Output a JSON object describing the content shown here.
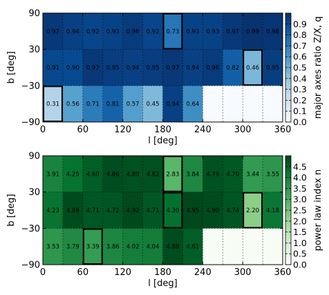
{
  "chart_data": [
    {
      "type": "heatmap",
      "xlabel": "l [deg]",
      "ylabel": "b [deg]",
      "xlim": [
        0,
        360
      ],
      "ylim": [
        -90,
        90
      ],
      "x_ticks": [
        "0",
        "60",
        "120",
        "180",
        "240",
        "300",
        "360"
      ],
      "y_ticks": [
        "90",
        "30",
        "−30",
        "−90"
      ],
      "row_b_edges": [
        [
          30,
          90
        ],
        [
          -30,
          30
        ],
        [
          -90,
          -30
        ]
      ],
      "col_width_deg": 30,
      "rows": [
        [
          0.97,
          0.94,
          0.92,
          0.93,
          0.96,
          0.92,
          0.73,
          0.93,
          0.93,
          0.97,
          0.99,
          0.98
        ],
        [
          0.91,
          0.9,
          0.97,
          0.95,
          0.94,
          0.95,
          0.97,
          0.94,
          0.96,
          0.82,
          0.46,
          0.95
        ],
        [
          0.31,
          0.56,
          0.71,
          0.81,
          0.57,
          0.45,
          0.94,
          0.64,
          null,
          null,
          null,
          null
        ]
      ],
      "labels": [
        [
          "0.97",
          "0.94",
          "0.92",
          "0.93",
          "0.96",
          "0.92",
          "0.73",
          "0.93",
          "0.93",
          "0.97",
          "0.99",
          "0.98"
        ],
        [
          "0.91",
          "0.90",
          "0.97",
          "0.95",
          "0.94",
          "0.95",
          "0.97",
          "0.94",
          "0.96",
          "0.82",
          "0.46",
          "0.95"
        ],
        [
          "0.31",
          "0.56",
          "0.71",
          "0.81",
          "0.57",
          "0.45",
          "0.94",
          "0.64",
          "",
          "",
          "",
          ""
        ]
      ],
      "highlighted": [
        [
          0,
          6
        ],
        [
          1,
          10
        ],
        [
          2,
          0
        ]
      ],
      "colorbar": {
        "label": "major axes ratio Z/X, q",
        "range": [
          0,
          1
        ],
        "ticks": [
          "0.0",
          "0.1",
          "0.2",
          "0.3",
          "0.4",
          "0.5",
          "0.6",
          "0.7",
          "0.8",
          "0.9"
        ],
        "tick_values": [
          0,
          0.1,
          0.2,
          0.3,
          0.4,
          0.5,
          0.6,
          0.7,
          0.8,
          0.9
        ],
        "colormap": [
          "#f7fbff",
          "#deebf7",
          "#c6dbef",
          "#9ecae1",
          "#6baed6",
          "#4292c6",
          "#2171b5",
          "#08519c",
          "#08306b"
        ]
      },
      "grid": true
    },
    {
      "type": "heatmap",
      "xlabel": "l [deg]",
      "ylabel": "b [deg]",
      "xlim": [
        0,
        360
      ],
      "ylim": [
        -90,
        90
      ],
      "x_ticks": [
        "0",
        "60",
        "120",
        "180",
        "240",
        "300",
        "360"
      ],
      "y_ticks": [
        "90",
        "30",
        "−30",
        "−90"
      ],
      "row_b_edges": [
        [
          30,
          90
        ],
        [
          -30,
          30
        ],
        [
          -90,
          -30
        ]
      ],
      "col_width_deg": 30,
      "rows": [
        [
          3.91,
          4.25,
          4.6,
          4.86,
          4.8,
          4.82,
          2.83,
          3.84,
          4.79,
          4.7,
          3.44,
          3.55
        ],
        [
          4.23,
          4.89,
          4.71,
          4.72,
          4.92,
          4.71,
          4.3,
          4.95,
          4.9,
          4.74,
          2.2,
          4.18
        ],
        [
          3.53,
          3.79,
          3.39,
          3.86,
          4.02,
          4.04,
          4.88,
          4.61,
          null,
          null,
          null,
          null
        ]
      ],
      "labels": [
        [
          "3.91",
          "4.25",
          "4.60",
          "4.86",
          "4.80",
          "4.82",
          "2.83",
          "3.84",
          "4.79",
          "4.70",
          "3.44",
          "3.55"
        ],
        [
          "4.23",
          "4.89",
          "4.71",
          "4.72",
          "4.92",
          "4.71",
          "4.30",
          "4.95",
          "4.90",
          "4.74",
          "2.20",
          "4.18"
        ],
        [
          "3.53",
          "3.79",
          "3.39",
          "3.86",
          "4.02",
          "4.04",
          "4.88",
          "4.61",
          "",
          "",
          "",
          ""
        ]
      ],
      "highlighted": [
        [
          0,
          6
        ],
        [
          1,
          6
        ],
        [
          1,
          10
        ],
        [
          2,
          2
        ]
      ],
      "colorbar": {
        "label": "power law index n",
        "range": [
          0,
          5
        ],
        "ticks": [
          "0.0",
          "0.5",
          "1.0",
          "1.5",
          "2.0",
          "2.5",
          "3.0",
          "3.5",
          "4.0",
          "4.5"
        ],
        "tick_values": [
          0,
          0.5,
          1.0,
          1.5,
          2.0,
          2.5,
          3.0,
          3.5,
          4.0,
          4.5
        ],
        "colormap": [
          "#f7fcf5",
          "#e5f5e0",
          "#c7e9c0",
          "#a1d99b",
          "#74c476",
          "#41ab5d",
          "#238b45",
          "#006d2c",
          "#00441b"
        ]
      },
      "grid": true
    }
  ]
}
